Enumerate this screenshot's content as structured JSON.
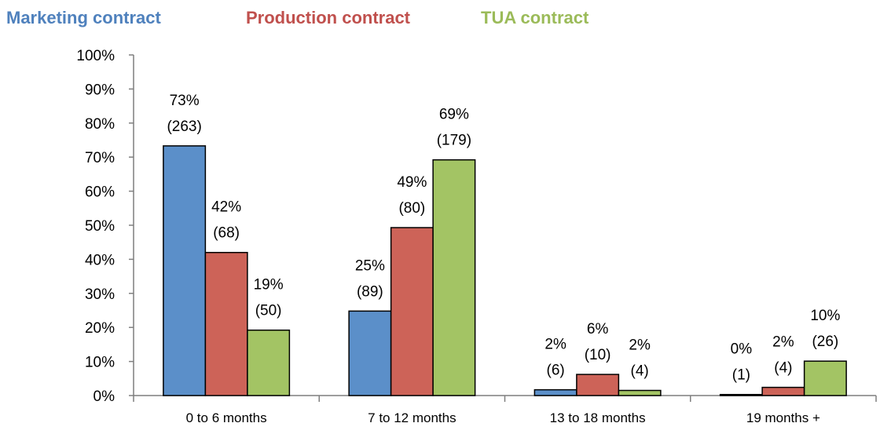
{
  "chart_data": {
    "type": "bar",
    "categories": [
      "0 to 6 months",
      "7 to 12 months",
      "13 to 18 months",
      "19 months +"
    ],
    "series": [
      {
        "name": "Marketing contract",
        "color": "#5b8fc9",
        "legend_color": "#4f81bd",
        "values": [
          73.3,
          24.8,
          1.7,
          0.3
        ],
        "value_labels": [
          [
            "73%",
            "(263)"
          ],
          [
            "25%",
            "(89)"
          ],
          [
            "2%",
            "(6)"
          ],
          [
            "0%",
            "(1)"
          ]
        ]
      },
      {
        "name": "Production contract",
        "color": "#cd6358",
        "legend_color": "#c0504d",
        "values": [
          42,
          49.3,
          6.2,
          2.4
        ],
        "value_labels": [
          [
            "42%",
            "(68)"
          ],
          [
            "49%",
            "(80)"
          ],
          [
            "6%",
            "(10)"
          ],
          [
            "2%",
            "(4)"
          ]
        ]
      },
      {
        "name": "TUA contract",
        "color": "#a3c464",
        "legend_color": "#9bbb59",
        "values": [
          19.2,
          69.2,
          1.5,
          10.1
        ],
        "value_labels": [
          [
            "19%",
            "(50)"
          ],
          [
            "69%",
            "(179)"
          ],
          [
            "2%",
            "(4)"
          ],
          [
            "10%",
            "(26)"
          ]
        ]
      }
    ],
    "ylim": [
      0,
      100
    ],
    "yticks": [
      {
        "value": 0,
        "label": "0%"
      },
      {
        "value": 10,
        "label": "10%"
      },
      {
        "value": 20,
        "label": "20%"
      },
      {
        "value": 30,
        "label": "30%"
      },
      {
        "value": 40,
        "label": "40%"
      },
      {
        "value": 50,
        "label": "50%"
      },
      {
        "value": 60,
        "label": "60%"
      },
      {
        "value": 70,
        "label": "70%"
      },
      {
        "value": 80,
        "label": "80%"
      },
      {
        "value": 90,
        "label": "90%"
      },
      {
        "value": 100,
        "label": "100%"
      }
    ],
    "grid": false
  }
}
